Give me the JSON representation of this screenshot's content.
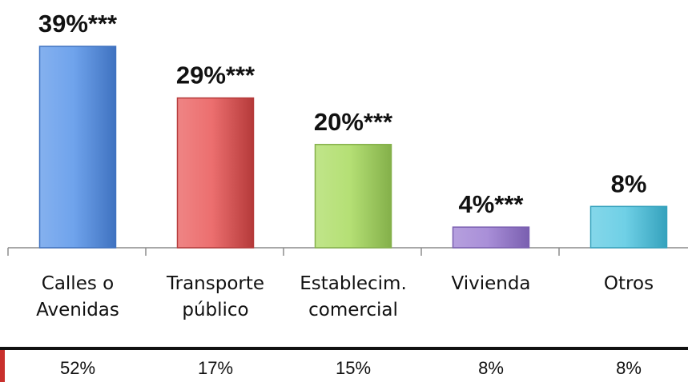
{
  "chart_data": {
    "type": "bar",
    "categories": [
      [
        "Calles o",
        "Avenidas"
      ],
      [
        "Transporte",
        "público"
      ],
      [
        "Establecim.",
        "comercial"
      ],
      [
        "Vivienda"
      ],
      [
        "Otros"
      ]
    ],
    "values": [
      39,
      29,
      20,
      4,
      8
    ],
    "value_labels": [
      "39%***",
      "29%***",
      "20%***",
      "4%***",
      "8%"
    ],
    "bar_colors": [
      "#6fa3ec",
      "#ec6f6f",
      "#b5e075",
      "#a98fd8",
      "#6fd0e6"
    ],
    "bar_edge_colors": [
      "#3f72c0",
      "#b53a3a",
      "#84b04a",
      "#7a5fb0",
      "#35a2bd"
    ],
    "comparison_values": [
      "52%",
      "17%",
      "15%",
      "8%",
      "8%"
    ],
    "grid": false
  }
}
